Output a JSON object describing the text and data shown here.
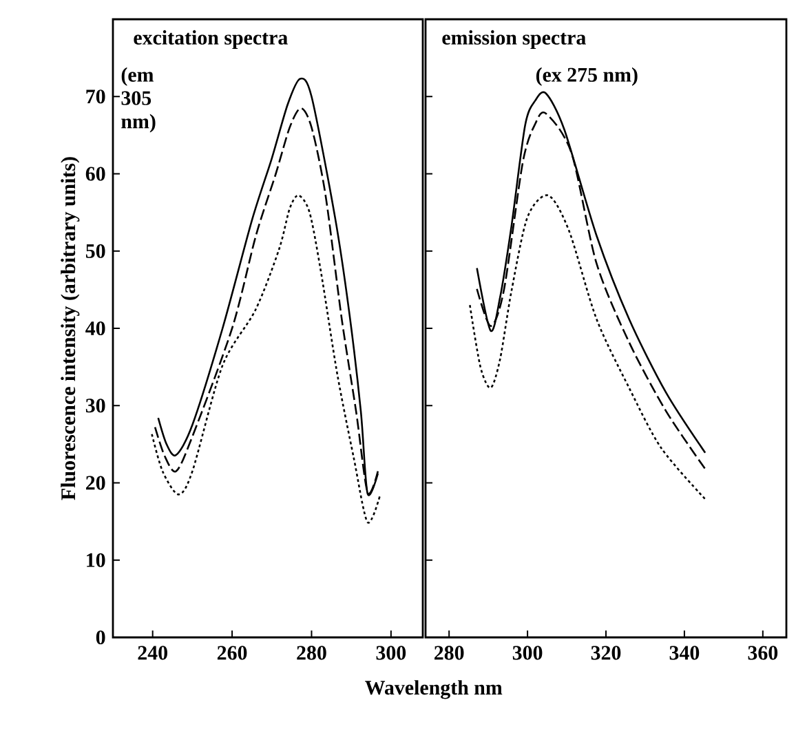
{
  "chart_data": [
    {
      "type": "line",
      "ylabel": "Fluorescence intensity (arbitrary units)",
      "xlabel": "Wavelength   nm",
      "annotations": [
        "excitation spectra",
        "(em 305 nm)"
      ],
      "xlim": [
        230,
        308
      ],
      "xticks": [
        240,
        260,
        280,
        300
      ],
      "ylim": [
        0,
        80
      ],
      "yticks": [
        0,
        10,
        20,
        30,
        40,
        50,
        60,
        70
      ],
      "series": [
        {
          "color": "#000000",
          "line_style": "solid",
          "x": [
            241.4,
            243.5,
            245.9,
            250,
            257.6,
            265,
            270,
            274,
            277.1,
            280,
            285.9,
            289.4,
            292.4,
            294.1,
            296.7
          ],
          "values": [
            28.4,
            25,
            23.6,
            27.5,
            40,
            54,
            62,
            69,
            72.3,
            70,
            54.4,
            42.4,
            29.3,
            18.6,
            21.2
          ]
        },
        {
          "color": "#000000",
          "line_style": "dashed",
          "x": [
            240.6,
            243,
            245.9,
            250,
            260,
            266,
            271,
            274.5,
            277.3,
            280,
            283.5,
            287.6,
            291.2,
            294.1,
            296.7
          ],
          "values": [
            27.2,
            23.5,
            21.5,
            26,
            40,
            52,
            60,
            66,
            68.5,
            66,
            57.3,
            41.2,
            29.3,
            18.8,
            21.5
          ]
        },
        {
          "color": "#000000",
          "line_style": "dotted",
          "x": [
            239.8,
            242.5,
            246.5,
            250,
            257.6,
            265.9,
            271.8,
            274.5,
            276.7,
            279.5,
            282.4,
            286.5,
            290.6,
            294.1,
            297.3
          ],
          "values": [
            26.3,
            21.5,
            18.5,
            21.5,
            35.2,
            42.4,
            50.2,
            55.5,
            57.2,
            55,
            47.2,
            34,
            23.3,
            14.9,
            18.5
          ]
        }
      ]
    },
    {
      "type": "line",
      "annotations": [
        "emission spectra",
        "(ex 275 nm)"
      ],
      "tick_labels": "x",
      "xlim": [
        274,
        366
      ],
      "xticks": [
        280,
        300,
        320,
        340,
        360
      ],
      "ylim": [
        0,
        80
      ],
      "yticks": [
        0,
        10,
        20,
        30,
        40,
        50,
        60,
        70
      ],
      "series": [
        {
          "color": "#000000",
          "line_style": "solid",
          "x": [
            287.1,
            290.6,
            293,
            295.9,
            299.4,
            302,
            304.7,
            309.4,
            317.6,
            325.9,
            335.3,
            345.3
          ],
          "values": [
            47.8,
            39.7,
            44,
            53.2,
            66.3,
            69.5,
            70.4,
            65.7,
            52,
            41.2,
            31.7,
            23.9
          ]
        },
        {
          "color": "#000000",
          "line_style": "dashed",
          "x": [
            287.1,
            290.6,
            294,
            298.8,
            302,
            304.7,
            311.2,
            317.6,
            325.9,
            335.3,
            345.3
          ],
          "values": [
            45.1,
            40.3,
            45,
            61.5,
            66.5,
            67.8,
            62.7,
            48.4,
            38.2,
            29.3,
            21.8
          ]
        },
        {
          "color": "#000000",
          "line_style": "dotted",
          "x": [
            285.3,
            288,
            290.6,
            293,
            295.9,
            300,
            305.3,
            310.6,
            317.6,
            325.9,
            334.1,
            345.3
          ],
          "values": [
            43,
            35,
            32.3,
            36,
            44.8,
            54.4,
            57.2,
            52.6,
            41.2,
            32.3,
            24.5,
            17.9
          ]
        }
      ]
    }
  ]
}
